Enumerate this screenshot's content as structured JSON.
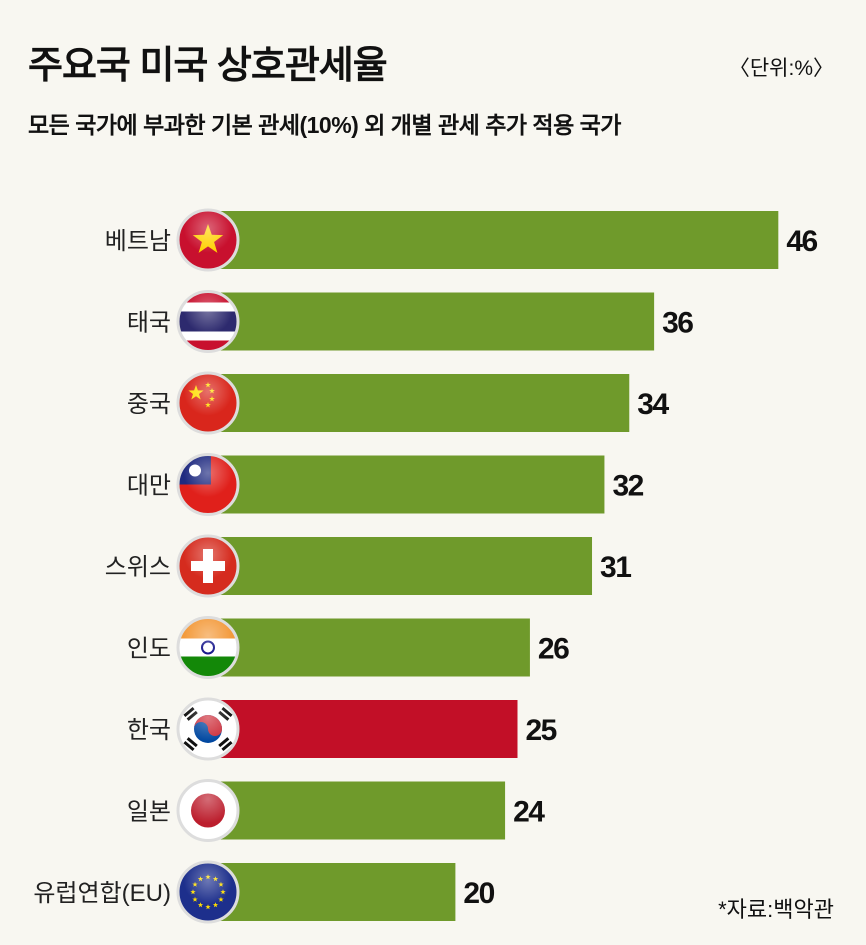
{
  "title": "주요국 미국 상호관세율",
  "unit": "〈단위:%〉",
  "subtitle": "모든 국가에 부과한 기본 관세(10%) 외 개별 관세 추가 적용 국가",
  "source": "*자료:백악관",
  "colors": {
    "default_bar": "#6f9a2b",
    "highlight_bar": "#c20f27",
    "background": "#f8f7f1"
  },
  "chart_data": {
    "type": "bar",
    "orientation": "horizontal",
    "title": "주요국 미국 상호관세율",
    "xlabel": "",
    "ylabel": "",
    "unit": "%",
    "categories": [
      "베트남",
      "태국",
      "중국",
      "대만",
      "스위스",
      "인도",
      "한국",
      "일본",
      "유럽연합(EU)"
    ],
    "values": [
      46,
      36,
      34,
      32,
      31,
      26,
      25,
      24,
      20
    ],
    "flags": [
      "vietnam-flag",
      "thailand-flag",
      "china-flag",
      "taiwan-flag",
      "switzerland-flag",
      "india-flag",
      "korea-flag",
      "japan-flag",
      "eu-flag"
    ],
    "highlight": "한국",
    "xlim": [
      0,
      50
    ],
    "grid": false,
    "legend": "none"
  }
}
